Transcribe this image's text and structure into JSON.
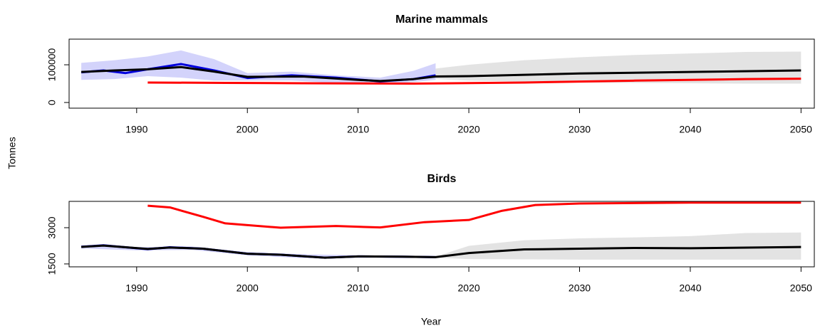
{
  "xlabel": "Year",
  "ylabel": "Tonnes",
  "chart_data": [
    {
      "type": "line",
      "title": "Marine mammals",
      "xlim": [
        1983.9,
        2051.2
      ],
      "xticks": [
        1990,
        2000,
        2010,
        2020,
        2030,
        2040,
        2050
      ],
      "ylim": [
        -15000,
        168000
      ],
      "yticks": [
        0,
        100000
      ],
      "series": [
        {
          "kind": "band",
          "color": "#e3e3e3",
          "x": [
            2017,
            2020,
            2025,
            2030,
            2035,
            2040,
            2045,
            2050
          ],
          "upper": [
            90000,
            100000,
            112000,
            120000,
            126000,
            130000,
            134000,
            135000
          ],
          "lower": [
            62000,
            58000,
            55000,
            53000,
            52000,
            51000,
            50000,
            50000
          ]
        },
        {
          "kind": "band",
          "color": "#d3d3fb",
          "x": [
            1985,
            1988,
            1991,
            1994,
            1997,
            2000,
            2004,
            2008,
            2012,
            2015,
            2017
          ],
          "upper": [
            105000,
            112000,
            122000,
            138000,
            115000,
            78000,
            82000,
            72000,
            66000,
            84000,
            104000
          ],
          "lower": [
            60000,
            62000,
            70000,
            66000,
            58000,
            58000,
            58000,
            52000,
            48000,
            54000,
            60000
          ]
        },
        {
          "kind": "line",
          "color": "#ff0000",
          "x": [
            1991,
            1998,
            2005,
            2015,
            2025,
            2035,
            2045,
            2050
          ],
          "values": [
            53000,
            52000,
            51000,
            50000,
            53000,
            58000,
            62000,
            63000
          ]
        },
        {
          "kind": "line",
          "color": "#0000dd",
          "x": [
            1985,
            1987,
            1989,
            1991,
            1994,
            1997,
            2000,
            2004,
            2008,
            2012,
            2015,
            2017
          ],
          "values": [
            80000,
            85000,
            78000,
            88000,
            102000,
            85000,
            65000,
            72000,
            66000,
            56000,
            62000,
            72000
          ]
        },
        {
          "kind": "line",
          "color": "#000000",
          "x": [
            1985,
            1988,
            1991,
            1994,
            1997,
            2000,
            2005,
            2010,
            2012,
            2015,
            2017,
            2020,
            2030,
            2040,
            2050
          ],
          "values": [
            81000,
            85000,
            88000,
            94000,
            82000,
            68000,
            69000,
            60000,
            57000,
            62000,
            69000,
            70000,
            77000,
            81000,
            85000
          ]
        }
      ]
    },
    {
      "type": "line",
      "title": "Birds",
      "xlim": [
        1983.9,
        2051.2
      ],
      "xticks": [
        1990,
        2000,
        2010,
        2020,
        2030,
        2040,
        2050
      ],
      "ylim": [
        1380,
        4090
      ],
      "yticks": [
        1500,
        3000
      ],
      "series": [
        {
          "kind": "band",
          "color": "#e3e3e3",
          "x": [
            2017,
            2020,
            2025,
            2030,
            2035,
            2040,
            2045,
            2050
          ],
          "upper": [
            1800,
            2250,
            2480,
            2560,
            2600,
            2650,
            2780,
            2800
          ],
          "lower": [
            1760,
            1700,
            1690,
            1680,
            1680,
            1680,
            1680,
            1680
          ]
        },
        {
          "kind": "band",
          "color": "#d3d3fb",
          "x": [
            1985,
            1990,
            1995,
            2000,
            2005,
            2010,
            2017
          ],
          "upper": [
            2280,
            2200,
            2220,
            1990,
            1900,
            1860,
            1810
          ],
          "lower": [
            2140,
            2060,
            2080,
            1860,
            1740,
            1760,
            1750
          ]
        },
        {
          "kind": "line",
          "color": "#ff0000",
          "x": [
            1991,
            1993,
            1996,
            1998,
            2003,
            2008,
            2012,
            2016,
            2020,
            2023,
            2026,
            2030,
            2040,
            2050
          ],
          "values": [
            3910,
            3840,
            3450,
            3180,
            3000,
            3070,
            3010,
            3230,
            3320,
            3700,
            3940,
            4000,
            4040,
            4040
          ]
        },
        {
          "kind": "line",
          "color": "#0000dd",
          "x": [
            1985,
            1987,
            1991,
            1993,
            1996,
            2000,
            2003,
            2007,
            2010,
            2014,
            2017
          ],
          "values": [
            2210,
            2270,
            2110,
            2190,
            2130,
            1920,
            1880,
            1760,
            1810,
            1800,
            1780
          ]
        },
        {
          "kind": "line",
          "color": "#000000",
          "x": [
            1985,
            1987,
            1991,
            1993,
            1996,
            2000,
            2003,
            2007,
            2010,
            2014,
            2017,
            2020,
            2025,
            2030,
            2035,
            2040,
            2050
          ],
          "values": [
            2206,
            2260,
            2120,
            2180,
            2130,
            1920,
            1880,
            1760,
            1810,
            1800,
            1780,
            1950,
            2100,
            2130,
            2160,
            2150,
            2200
          ]
        }
      ]
    }
  ]
}
